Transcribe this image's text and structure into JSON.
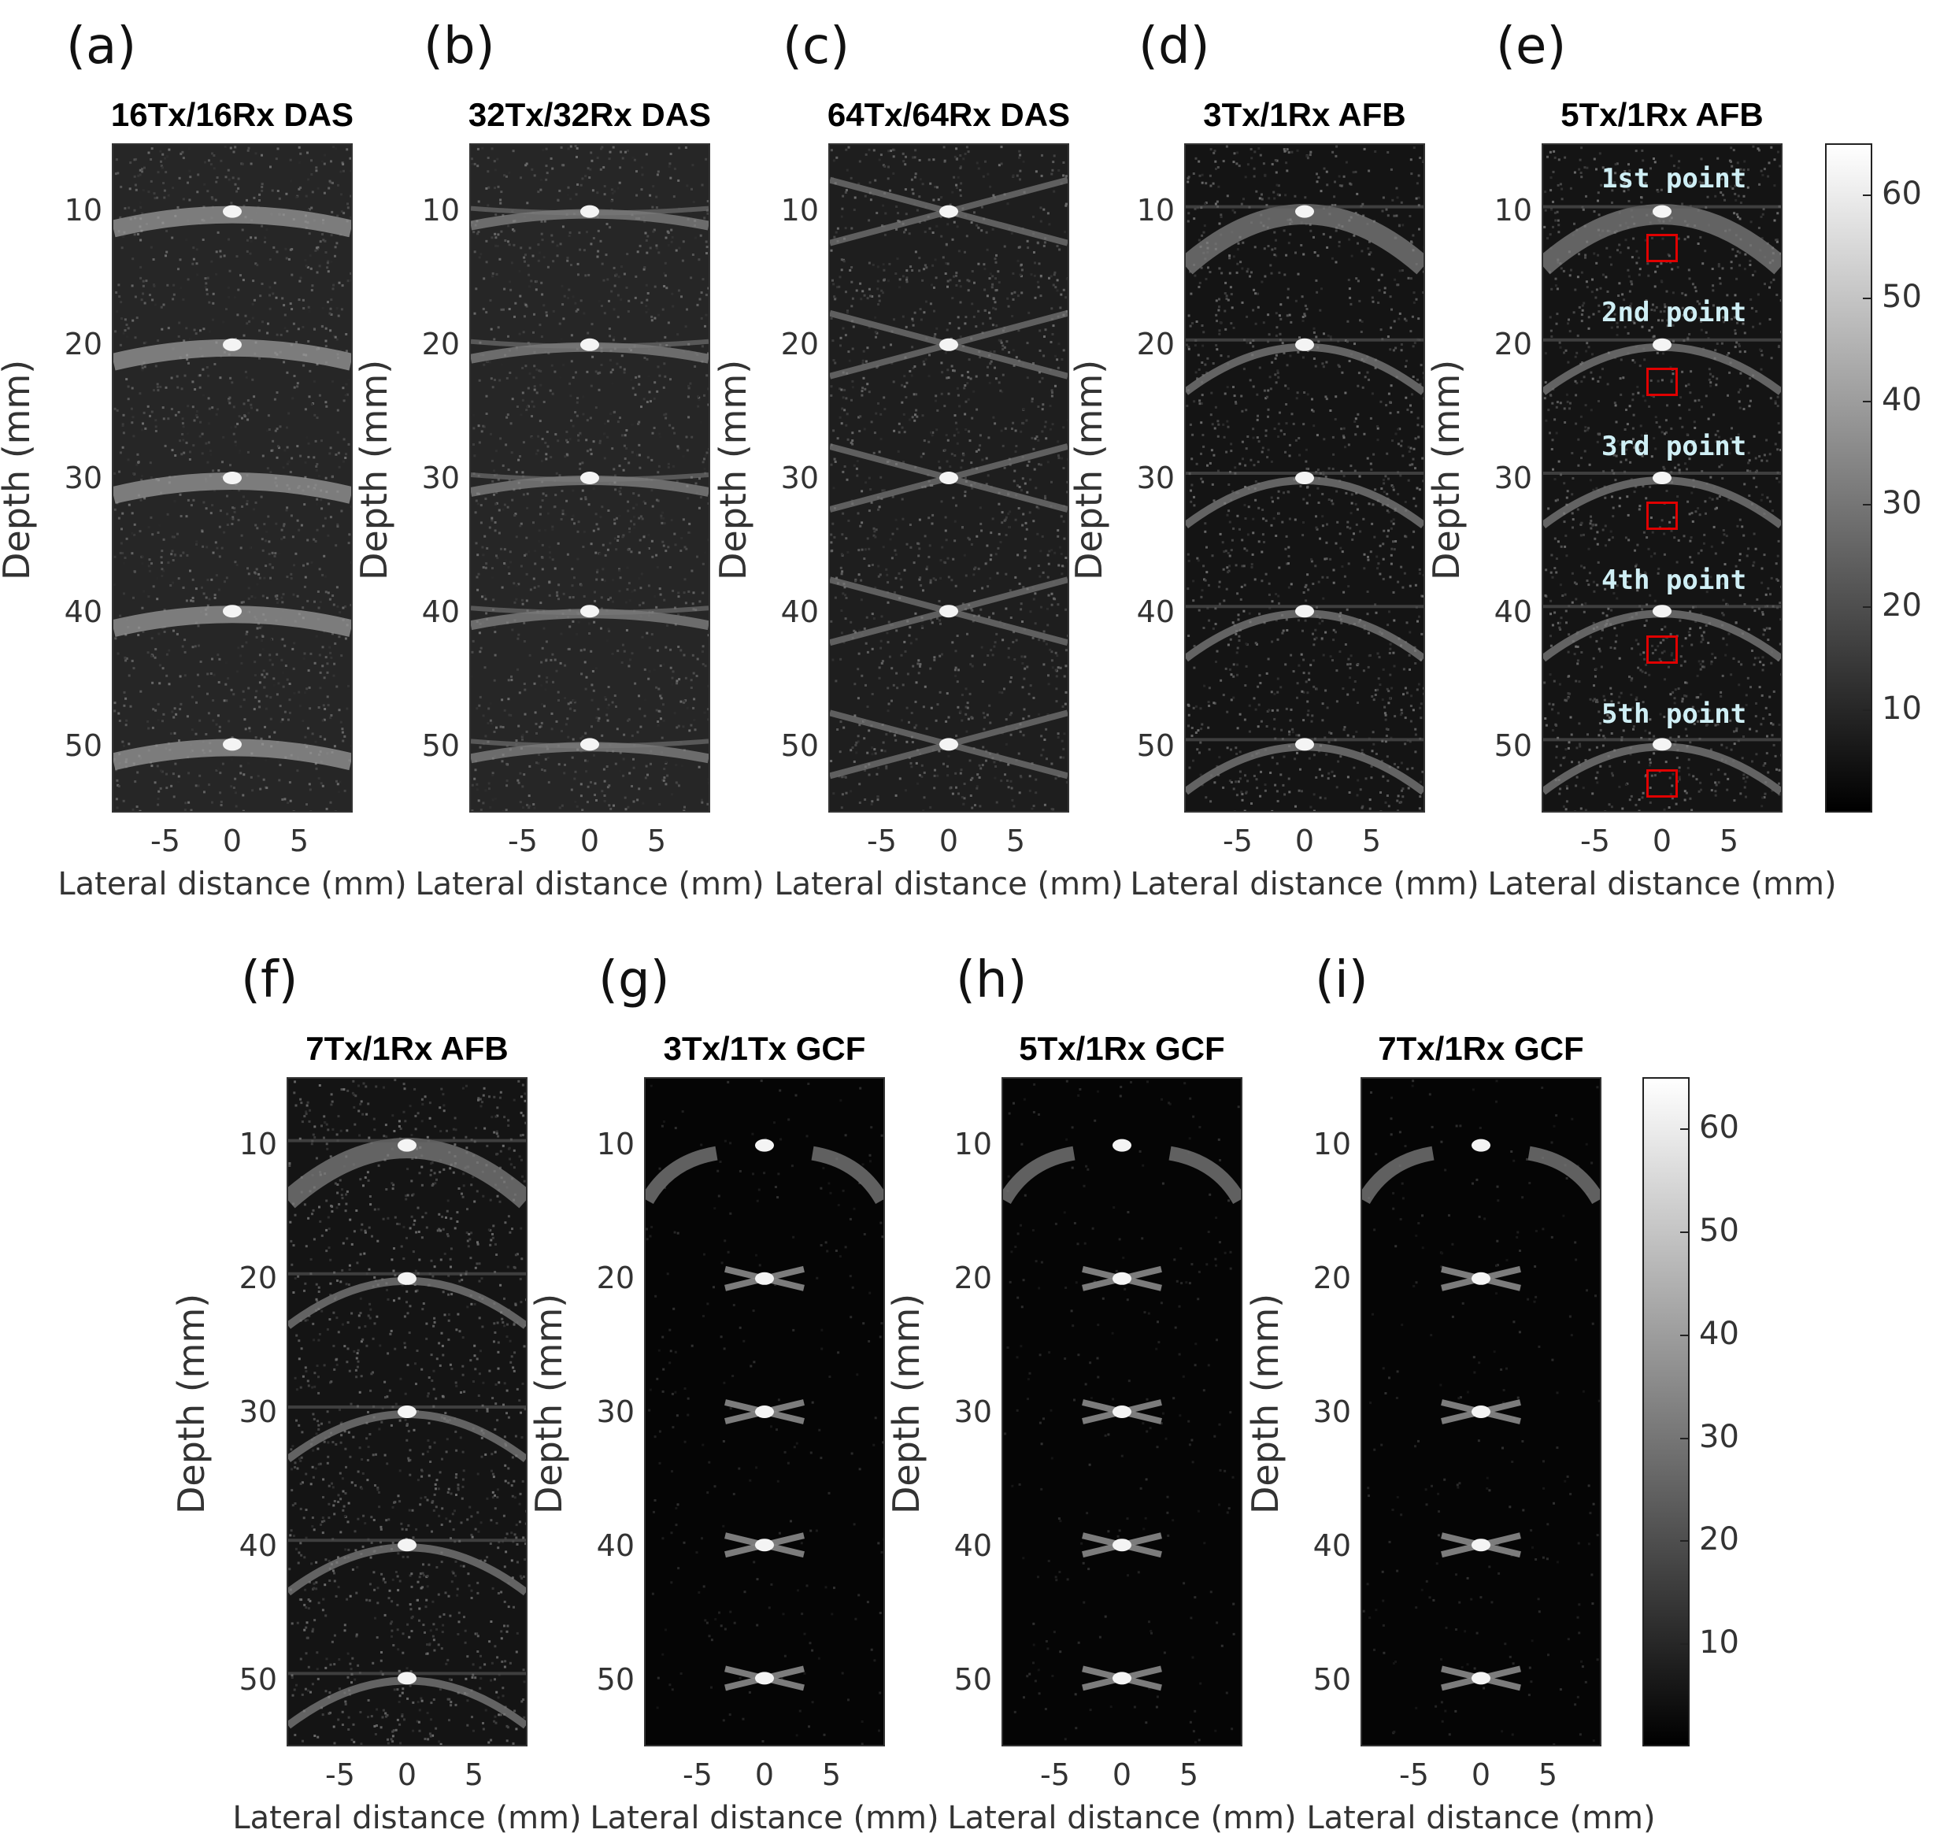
{
  "panels_top": [
    {
      "letter": "(a)",
      "title": "16Tx/16Rx DAS",
      "style": "das_wide"
    },
    {
      "letter": "(b)",
      "title": "32Tx/32Rx DAS",
      "style": "das_mid"
    },
    {
      "letter": "(c)",
      "title": "64Tx/64Rx DAS",
      "style": "das_x"
    },
    {
      "letter": "(d)",
      "title": "3Tx/1Rx AFB",
      "style": "afb"
    },
    {
      "letter": "(e)",
      "title": "5Tx/1Rx AFB",
      "style": "afb"
    }
  ],
  "panels_bottom": [
    {
      "letter": "(f)",
      "title": "7Tx/1Rx AFB",
      "style": "afb"
    },
    {
      "letter": "(g)",
      "title": "3Tx/1Tx GCF",
      "style": "gcf"
    },
    {
      "letter": "(h)",
      "title": "5Tx/1Rx GCF",
      "style": "gcf"
    },
    {
      "letter": "(i)",
      "title": "7Tx/1Rx GCF",
      "style": "gcf"
    }
  ],
  "axes": {
    "ylabel": "Depth (mm)",
    "xlabel": "Lateral distance (mm)",
    "yticks": [
      "10",
      "20",
      "30",
      "40",
      "50"
    ],
    "xticks": [
      "-5",
      "0",
      "5"
    ]
  },
  "colorbar": {
    "ticks": [
      "60",
      "50",
      "40",
      "30",
      "20",
      "10"
    ],
    "colormap": "gray"
  },
  "annotations": {
    "points": [
      "1st  point",
      "2nd  point",
      "3rd  point",
      "4th  point",
      "5th  point"
    ],
    "roi_color": "#e00000",
    "text_color": "#cfeff5"
  }
}
